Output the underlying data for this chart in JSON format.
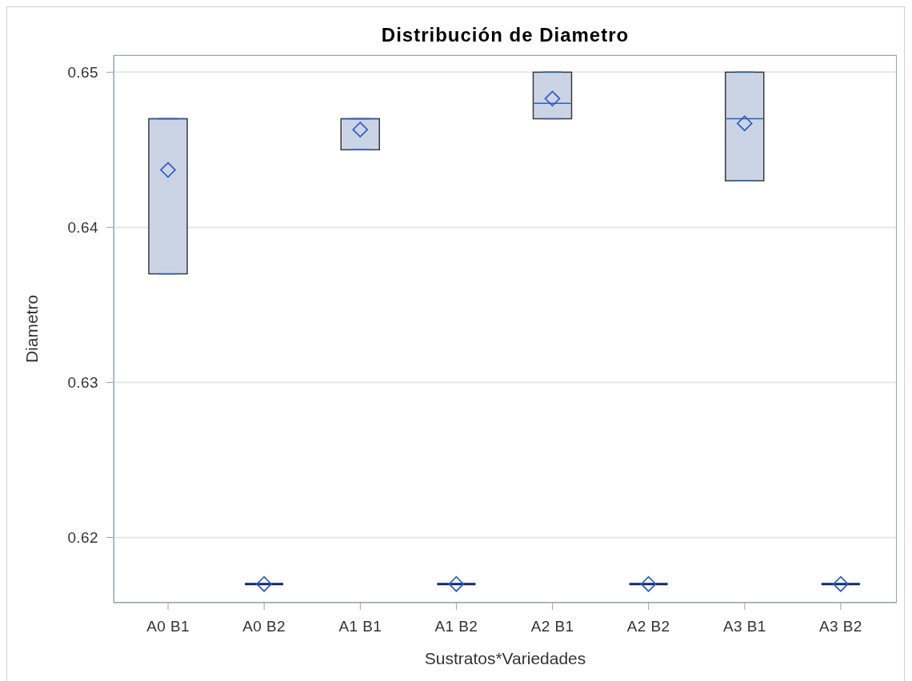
{
  "chart_data": {
    "type": "box",
    "title": "Distribución de Diametro",
    "xlabel": "Sustratos*Variedades",
    "ylabel": "Diametro",
    "categories": [
      "A0 B1",
      "A0 B2",
      "A1 B1",
      "A1 B2",
      "A2 B1",
      "A2 B2",
      "A3 B1",
      "A3 B2"
    ],
    "boxes": [
      {
        "low": 0.637,
        "q1": 0.637,
        "median": 0.647,
        "q3": 0.647,
        "high": 0.647,
        "mean": 0.6437
      },
      {
        "low": 0.617,
        "q1": 0.617,
        "median": 0.617,
        "q3": 0.617,
        "high": 0.617,
        "mean": 0.617
      },
      {
        "low": 0.645,
        "q1": 0.645,
        "median": 0.647,
        "q3": 0.647,
        "high": 0.647,
        "mean": 0.6463
      },
      {
        "low": 0.617,
        "q1": 0.617,
        "median": 0.617,
        "q3": 0.617,
        "high": 0.617,
        "mean": 0.617
      },
      {
        "low": 0.647,
        "q1": 0.647,
        "median": 0.648,
        "q3": 0.65,
        "high": 0.65,
        "mean": 0.6483
      },
      {
        "low": 0.617,
        "q1": 0.617,
        "median": 0.617,
        "q3": 0.617,
        "high": 0.617,
        "mean": 0.617
      },
      {
        "low": 0.643,
        "q1": 0.643,
        "median": 0.647,
        "q3": 0.65,
        "high": 0.65,
        "mean": 0.6467
      },
      {
        "low": 0.617,
        "q1": 0.617,
        "median": 0.617,
        "q3": 0.617,
        "high": 0.617,
        "mean": 0.617
      }
    ],
    "colors": [
      "#cad4e5",
      "#0f2c6f",
      "#cad4e5",
      "#0f2c6f",
      "#cad4e5",
      "#0f2c6f",
      "#cad4e5",
      "#0f2c6f"
    ],
    "ylim": [
      0.6158,
      0.6511
    ],
    "yticks": [
      0.62,
      0.63,
      0.64,
      0.65
    ],
    "grid": "y",
    "marker": "diamond"
  }
}
